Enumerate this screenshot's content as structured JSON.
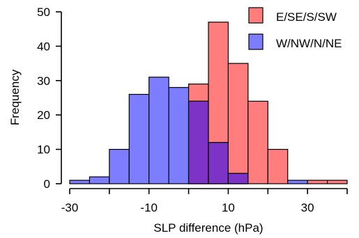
{
  "chart_data": {
    "type": "histogram",
    "xlabel": "SLP difference (hPa)",
    "ylabel": "Frequency",
    "xlim": [
      -30,
      40
    ],
    "ylim": [
      0,
      50
    ],
    "x_ticks": [
      -30,
      -20,
      -10,
      0,
      10,
      20,
      30,
      40
    ],
    "x_tick_labels": [
      "-30",
      "",
      "-10",
      "",
      "10",
      "",
      "30",
      ""
    ],
    "y_ticks": [
      0,
      10,
      20,
      30,
      40,
      50
    ],
    "y_tick_labels": [
      "0",
      "10",
      "20",
      "30",
      "40",
      "50"
    ],
    "bin_width": 5,
    "bin_starts": [
      -30,
      -25,
      -20,
      -15,
      -10,
      -5,
      0,
      5,
      10,
      15,
      20,
      25,
      30,
      35
    ],
    "legend_position": "top-right",
    "series": [
      {
        "name": "E/SE/S/SW",
        "color": "#ff7d7d",
        "values": [
          0,
          0,
          0,
          0,
          0,
          0,
          29,
          47,
          35,
          24,
          10,
          0,
          1,
          1
        ]
      },
      {
        "name": "W/NW/N/NE",
        "color": "#7d7dff",
        "values": [
          1,
          2,
          10,
          26,
          31,
          28,
          24,
          12,
          3,
          0,
          0,
          1,
          0,
          0
        ]
      }
    ],
    "overlap_color": "#7c33c6"
  }
}
